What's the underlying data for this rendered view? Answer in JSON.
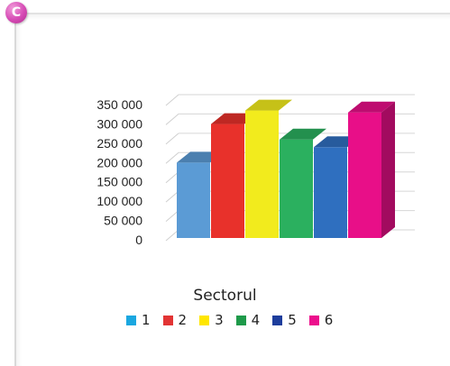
{
  "figure": {
    "label": "C"
  },
  "chart_data": {
    "type": "bar",
    "title": "",
    "xlabel": "",
    "ylabel": "",
    "categories": [
      "1",
      "2",
      "3",
      "4",
      "5",
      "6"
    ],
    "values": [
      195000,
      295000,
      330000,
      255000,
      235000,
      325000
    ],
    "ylim": [
      0,
      350000
    ],
    "yticks": [
      "0",
      "50 000",
      "100 000",
      "150 000",
      "200 000",
      "250 000",
      "300 000",
      "350 000"
    ],
    "grid": true,
    "style": "3d",
    "legend_title": "Sectorul",
    "legend_position": "bottom",
    "colors": [
      "#5b9bd5",
      "#e8312b",
      "#f2eb1d",
      "#2bb05f",
      "#2f6fbf",
      "#e80f88"
    ],
    "legend_colors": [
      "#1aa7e0",
      "#e23434",
      "#ffe600",
      "#1e9a4a",
      "#1d3d9c",
      "#ec0e8c"
    ]
  }
}
